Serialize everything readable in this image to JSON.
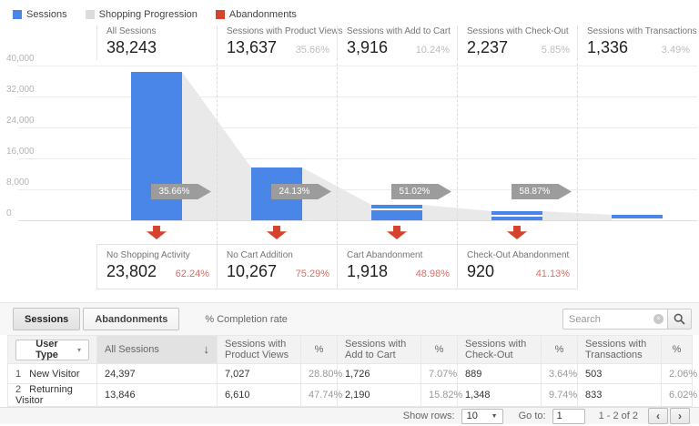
{
  "legend": {
    "items": [
      {
        "label": "Sessions",
        "color": "#4a86e8"
      },
      {
        "label": "Shopping Progression",
        "color": "#dcdcdc"
      },
      {
        "label": "Abandonments",
        "color": "#d6432d"
      }
    ]
  },
  "funnel": {
    "y_axis_labels": [
      "40,000",
      "32,000",
      "24,000",
      "16,000",
      "8,000",
      "0"
    ],
    "y_max": 40000,
    "stages": [
      {
        "title": "All Sessions",
        "value": "38,243",
        "percent": "",
        "sessions": 38243
      },
      {
        "title": "Sessions with Product Views",
        "value": "13,637",
        "percent": "35.66%",
        "sessions": 13637
      },
      {
        "title": "Sessions with Add to Cart",
        "value": "3,916",
        "percent": "10.24%",
        "sessions": 3916
      },
      {
        "title": "Sessions with Check-Out",
        "value": "2,237",
        "percent": "5.85%",
        "sessions": 2237
      },
      {
        "title": "Sessions with Transactions",
        "value": "1,336",
        "percent": "3.49%",
        "sessions": 1336
      }
    ],
    "transitions": [
      "35.66%",
      "24.13%",
      "51.02%",
      "58.87%"
    ],
    "abandonments": [
      {
        "title": "No Shopping Activity",
        "value": "23,802",
        "percent": "62.24%"
      },
      {
        "title": "No Cart Addition",
        "value": "10,267",
        "percent": "75.29%"
      },
      {
        "title": "Cart Abandonment",
        "value": "1,918",
        "percent": "48.98%"
      },
      {
        "title": "Check-Out Abandonment",
        "value": "920",
        "percent": "41.13%"
      }
    ]
  },
  "chart_data": {
    "type": "bar",
    "subtype": "shopping-behavior-funnel",
    "categories": [
      "All Sessions",
      "Sessions with Product Views",
      "Sessions with Add to Cart",
      "Sessions with Check-Out",
      "Sessions with Transactions"
    ],
    "values": [
      38243,
      13637,
      3916,
      2237,
      1336
    ],
    "stage_percents": [
      null,
      35.66,
      10.24,
      5.85,
      3.49
    ],
    "transition_percents": [
      35.66,
      24.13,
      51.02,
      58.87
    ],
    "abandonment": {
      "categories": [
        "No Shopping Activity",
        "No Cart Addition",
        "Cart Abandonment",
        "Check-Out Abandonment"
      ],
      "values": [
        23802,
        10267,
        1918,
        920
      ],
      "percents": [
        62.24,
        75.29,
        48.98,
        41.13
      ]
    },
    "ylim": [
      0,
      40000
    ],
    "y_ticks": [
      0,
      8000,
      16000,
      24000,
      32000,
      40000
    ],
    "grid": true,
    "legend_position": "top",
    "series_colors": {
      "sessions": "#4a86e8",
      "progression": "#e9e9e9",
      "abandonments": "#d6432d"
    }
  },
  "toolbar": {
    "tabs": [
      {
        "label": "Sessions",
        "active": true
      },
      {
        "label": "Abandonments",
        "active": false
      }
    ],
    "completion_label": "% Completion rate",
    "search_placeholder": "Search"
  },
  "table": {
    "columns": [
      "User Type",
      "All Sessions",
      "Sessions with Product Views",
      "%",
      "Sessions with Add to Cart",
      "%",
      "Sessions with Check-Out",
      "%",
      "Sessions with Transactions",
      "%"
    ],
    "rows": [
      {
        "index": "1",
        "user_type": "New Visitor",
        "all_sessions": "24,397",
        "product_views": "7,027",
        "product_views_pct": "28.80%",
        "add_to_cart": "1,726",
        "add_to_cart_pct": "7.07%",
        "checkout": "889",
        "checkout_pct": "3.64%",
        "transactions": "503",
        "transactions_pct": "2.06%"
      },
      {
        "index": "2",
        "user_type": "Returning Visitor",
        "all_sessions": "13,846",
        "product_views": "6,610",
        "product_views_pct": "47.74%",
        "add_to_cart": "2,190",
        "add_to_cart_pct": "15.82%",
        "checkout": "1,348",
        "checkout_pct": "9.74%",
        "transactions": "833",
        "transactions_pct": "6.02%"
      }
    ]
  },
  "pagination": {
    "show_rows_label": "Show rows:",
    "show_rows_value": "10",
    "goto_label": "Go to:",
    "goto_value": "1",
    "range_text": "1 - 2 of 2"
  },
  "icons": {
    "caret_down": "▾",
    "select_caret": "▼",
    "sort_desc": "↓",
    "clear_x": "×",
    "prev": "‹",
    "next": "›"
  }
}
